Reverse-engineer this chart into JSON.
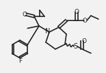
{
  "bg_color": "#f2f2f2",
  "line_color": "#222222",
  "line_width": 1.2,
  "font_size": 6.5,
  "figsize": [
    1.55,
    1.07
  ],
  "dpi": 100,
  "xlim": [
    0,
    155
  ],
  "ylim": [
    0,
    107
  ]
}
